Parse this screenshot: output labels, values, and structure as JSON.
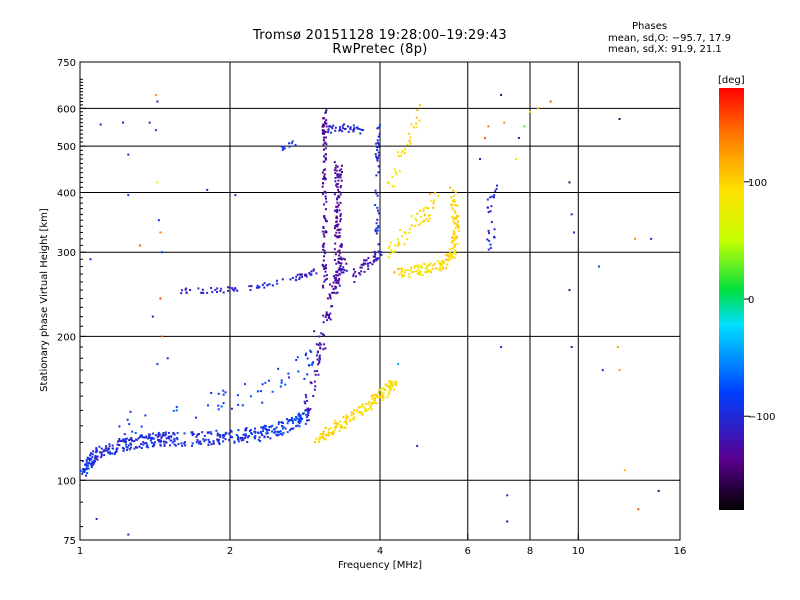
{
  "title_line1": "Tromsø 20151128 19:28:00–19:29:43",
  "title_line2": "RwPretec (8p)",
  "stats": {
    "header": "Phases",
    "line_o": "mean, sd,O: −95.7, 17.9",
    "line_x": "mean, sd,X:  91.9, 21.1"
  },
  "colorbar": {
    "label": "[deg]",
    "ticks": [
      {
        "value": 100,
        "label": "100"
      },
      {
        "value": 0,
        "label": "0"
      },
      {
        "value": -100,
        "label": "−100"
      }
    ],
    "range": [
      -180,
      180
    ]
  },
  "chart_data": {
    "type": "scatter",
    "title": "Tromsø 20151128 19:28:00–19:29:43",
    "subtitle": "RwPretec (8p)",
    "xlabel": "Frequency [MHz]",
    "ylabel": "Stationary phase Virtual Height [km]",
    "x_scale": "log2",
    "y_scale": "log",
    "xlim": [
      1,
      16
    ],
    "ylim": [
      75,
      750
    ],
    "grid": true,
    "x_ticks": [
      {
        "value": 1,
        "label": "1"
      },
      {
        "value": 2,
        "label": "2"
      },
      {
        "value": 4,
        "label": "4"
      },
      {
        "value": 6,
        "label": "6"
      },
      {
        "value": 8,
        "label": "8"
      },
      {
        "value": 10,
        "label": "10"
      },
      {
        "value": 16,
        "label": "16"
      }
    ],
    "x_gridlines": [
      2,
      4,
      6,
      8,
      10
    ],
    "y_ticks": [
      {
        "value": 75,
        "label": "75"
      },
      {
        "value": 100,
        "label": "100"
      },
      {
        "value": 200,
        "label": "200"
      },
      {
        "value": 300,
        "label": "300"
      },
      {
        "value": 400,
        "label": "400"
      },
      {
        "value": 500,
        "label": "500"
      },
      {
        "value": 600,
        "label": "600"
      },
      {
        "value": 750,
        "label": "750"
      }
    ],
    "y_gridlines": [
      100,
      200,
      300,
      400,
      500,
      600
    ],
    "color_scale": {
      "quantity": "phase",
      "unit": "deg",
      "min": -180,
      "max": 180
    },
    "traces": [
      {
        "points": [
          [
            1.0,
            104,
            -90
          ],
          [
            1.05,
            110,
            -95
          ],
          [
            1.1,
            115,
            -100
          ],
          [
            1.2,
            118,
            -95
          ],
          [
            1.3,
            120,
            -100
          ],
          [
            1.4,
            121,
            -95
          ],
          [
            1.5,
            122,
            -100
          ],
          [
            1.7,
            122,
            -95
          ],
          [
            1.9,
            123,
            -100
          ],
          [
            2.1,
            124,
            -95
          ],
          [
            2.3,
            125,
            -90
          ],
          [
            2.5,
            128,
            -85
          ],
          [
            2.7,
            132,
            -80
          ],
          [
            2.85,
            138,
            -90
          ]
        ],
        "spread": 0.05,
        "density": 34
      },
      {
        "points": [
          [
            1.2,
            128,
            -85
          ],
          [
            1.6,
            140,
            -80
          ],
          [
            2.0,
            148,
            -85
          ],
          [
            2.4,
            155,
            -80
          ],
          [
            2.8,
            175,
            -85
          ],
          [
            3.0,
            195,
            -90
          ]
        ],
        "spread": 0.09,
        "density": 12
      },
      {
        "points": [
          [
            2.85,
            140,
            -120
          ],
          [
            3.0,
            175,
            -125
          ],
          [
            3.1,
            210,
            -120
          ],
          [
            3.2,
            245,
            -130
          ],
          [
            3.3,
            270,
            -125
          ],
          [
            3.4,
            285,
            -120
          ]
        ],
        "spread": 0.05,
        "density": 22
      },
      {
        "points": [
          [
            1.6,
            249,
            -110
          ],
          [
            1.8,
            250,
            -105
          ],
          [
            2.0,
            250,
            -110
          ],
          [
            2.3,
            255,
            -105
          ],
          [
            2.6,
            262,
            -100
          ],
          [
            2.8,
            268,
            -110
          ],
          [
            3.0,
            275,
            -115
          ]
        ],
        "spread": 0.02,
        "density": 12
      },
      {
        "points": [
          [
            3.1,
            250,
            -125
          ],
          [
            3.1,
            320,
            -130
          ],
          [
            3.1,
            420,
            -125
          ],
          [
            3.1,
            520,
            -130
          ],
          [
            3.1,
            590,
            -125
          ]
        ],
        "spread": 0.03,
        "density": 26
      },
      {
        "points": [
          [
            3.3,
            260,
            -125
          ],
          [
            3.3,
            330,
            -130
          ],
          [
            3.3,
            400,
            -130
          ],
          [
            3.3,
            450,
            -125
          ]
        ],
        "spread": 0.05,
        "density": 34
      },
      {
        "points": [
          [
            3.55,
            265,
            -125
          ],
          [
            3.7,
            280,
            -120
          ],
          [
            3.9,
            290,
            -115
          ],
          [
            4.0,
            300,
            -110
          ]
        ],
        "spread": 0.04,
        "density": 14
      },
      {
        "points": [
          [
            3.1,
            540,
            -100
          ],
          [
            3.4,
            545,
            -105
          ],
          [
            3.7,
            540,
            -95
          ]
        ],
        "spread": 0.03,
        "density": 20
      },
      {
        "points": [
          [
            3.95,
            290,
            -110
          ],
          [
            3.95,
            380,
            -100
          ],
          [
            3.95,
            480,
            -105
          ],
          [
            4.0,
            580,
            -95
          ]
        ],
        "spread": 0.03,
        "density": 14
      },
      {
        "points": [
          [
            2.5,
            490,
            -95
          ],
          [
            2.6,
            500,
            -90
          ],
          [
            2.7,
            510,
            -95
          ]
        ],
        "spread": 0.03,
        "density": 5
      },
      {
        "points": [
          [
            4.3,
            270,
            95
          ],
          [
            4.8,
            275,
            90
          ],
          [
            5.3,
            282,
            95
          ],
          [
            5.6,
            300,
            90
          ],
          [
            5.7,
            340,
            95
          ],
          [
            5.6,
            400,
            100
          ]
        ],
        "spread": 0.04,
        "density": 34
      },
      {
        "points": [
          [
            4.2,
            300,
            80
          ],
          [
            4.5,
            330,
            90
          ],
          [
            4.9,
            360,
            95
          ],
          [
            5.2,
            400,
            100
          ]
        ],
        "spread": 0.06,
        "density": 18
      },
      {
        "points": [
          [
            4.2,
            420,
            85
          ],
          [
            4.4,
            470,
            90
          ],
          [
            4.6,
            520,
            95
          ],
          [
            4.8,
            590,
            100
          ]
        ],
        "spread": 0.05,
        "density": 10
      },
      {
        "points": [
          [
            2.95,
            120,
            105
          ],
          [
            3.2,
            128,
            100
          ],
          [
            3.4,
            133,
            95
          ],
          [
            3.7,
            140,
            90
          ],
          [
            3.9,
            148,
            95
          ],
          [
            4.15,
            155,
            90
          ],
          [
            4.3,
            160,
            85
          ]
        ],
        "spread": 0.04,
        "density": 28
      },
      {
        "points": [
          [
            6.6,
            300,
            -95
          ],
          [
            6.7,
            330,
            -100
          ],
          [
            6.6,
            380,
            -100
          ],
          [
            6.9,
            410,
            -95
          ]
        ],
        "spread": 0.05,
        "density": 8
      }
    ],
    "isolated_points": [
      [
        1.05,
        290,
        -100
      ],
      [
        1.1,
        555,
        -110
      ],
      [
        1.22,
        560,
        -100
      ],
      [
        1.25,
        480,
        -110
      ],
      [
        1.25,
        395,
        -90
      ],
      [
        1.32,
        310,
        150
      ],
      [
        1.38,
        560,
        -100
      ],
      [
        1.42,
        640,
        130
      ],
      [
        1.42,
        540,
        -95
      ],
      [
        1.43,
        620,
        -110
      ],
      [
        1.43,
        420,
        90
      ],
      [
        1.44,
        350,
        -90
      ],
      [
        1.45,
        330,
        140
      ],
      [
        1.46,
        300,
        -80
      ],
      [
        1.45,
        240,
        160
      ],
      [
        1.4,
        220,
        -120
      ],
      [
        1.43,
        175,
        -90
      ],
      [
        1.46,
        200,
        150
      ],
      [
        1.5,
        180,
        -110
      ],
      [
        1.8,
        405,
        -110
      ],
      [
        2.05,
        395,
        -100
      ],
      [
        1.25,
        77,
        -100
      ],
      [
        1.08,
        83,
        -100
      ],
      [
        2.95,
        205,
        -130
      ],
      [
        4.35,
        175,
        -40
      ],
      [
        4.75,
        118,
        -120
      ],
      [
        6.35,
        470,
        -120
      ],
      [
        6.5,
        520,
        150
      ],
      [
        6.6,
        550,
        140
      ],
      [
        7.0,
        640,
        -150
      ],
      [
        7.1,
        560,
        130
      ],
      [
        7.0,
        190,
        -100
      ],
      [
        7.2,
        93,
        -100
      ],
      [
        7.2,
        82,
        -140
      ],
      [
        7.5,
        470,
        90
      ],
      [
        7.6,
        520,
        -110
      ],
      [
        7.8,
        550,
        20
      ],
      [
        8.0,
        590,
        100
      ],
      [
        8.3,
        600,
        110
      ],
      [
        8.8,
        620,
        150
      ],
      [
        9.6,
        420,
        -150
      ],
      [
        9.7,
        360,
        -100
      ],
      [
        9.8,
        330,
        -110
      ],
      [
        9.6,
        250,
        -140
      ],
      [
        9.7,
        190,
        -140
      ],
      [
        11.0,
        280,
        -80
      ],
      [
        11.2,
        170,
        -100
      ],
      [
        12.1,
        570,
        -150
      ],
      [
        12.0,
        190,
        120
      ],
      [
        12.1,
        170,
        120
      ],
      [
        12.4,
        105,
        110
      ],
      [
        13.0,
        320,
        130
      ],
      [
        13.2,
        87,
        150
      ],
      [
        14.0,
        320,
        -100
      ],
      [
        14.5,
        95,
        -150
      ]
    ]
  }
}
